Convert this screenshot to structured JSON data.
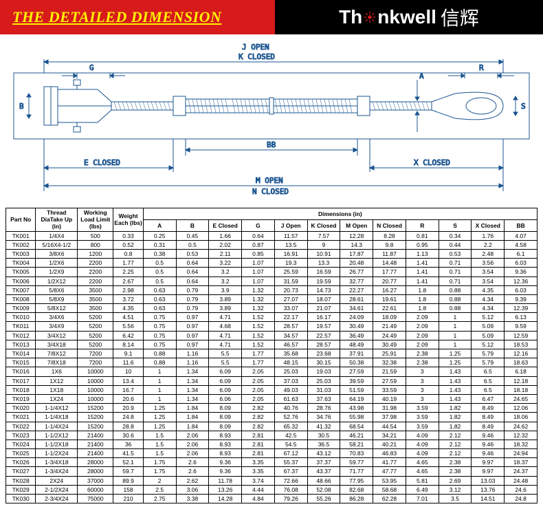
{
  "header": {
    "title": "THE DETAILED DIMENSION",
    "logo_prefix": "Th",
    "logo_mid": "nkwell",
    "logo_cn": "信辉"
  },
  "diagram": {
    "labels": {
      "j_open": "J OPEN",
      "k_closed": "K CLOSED",
      "g": "G",
      "b": "B",
      "e_closed": "E CLOSED",
      "bb": "BB",
      "m_open": "M OPEN",
      "n_closed": "N CLOSED",
      "a": "A",
      "s": "S",
      "r": "R",
      "x_closed": "X CLOSED"
    },
    "stroke": "#1a5490",
    "fill": "#ffffff"
  },
  "table": {
    "top_headers": {
      "part_no": "Part No",
      "thread": "Thread DiaTake Up (in)",
      "load": "Working Load Limit (lbs)",
      "weight": "Weight Each (lbs)",
      "dims": "Dimensions (in)"
    },
    "dim_cols": [
      "A",
      "B",
      "E Closed",
      "G",
      "J Open",
      "K Closed",
      "M Open",
      "N Closed",
      "R",
      "S",
      "X Closed",
      "BB"
    ],
    "rows": [
      [
        "TK001",
        "1/4X4",
        "500",
        "0.33",
        "0.25",
        "0.45",
        "1.66",
        "0.64",
        "11.57",
        "7.57",
        "12.28",
        "8.28",
        "0.81",
        "0.34",
        "1.76",
        "4.07"
      ],
      [
        "TK002",
        "5/16X4-1/2",
        "800",
        "0.52",
        "0.31",
        "0.5",
        "2.02",
        "0.87",
        "13.5",
        "9",
        "14.3",
        "9.8",
        "0.95",
        "0.44",
        "2.2",
        "4.58"
      ],
      [
        "TK003",
        "3/8X6",
        "1200",
        "0.8",
        "0.38",
        "0.53",
        "2.11",
        "0.85",
        "16.91",
        "10.91",
        "17.87",
        "11.87",
        "1.13",
        "0.53",
        "2.48",
        "6.1"
      ],
      [
        "TK004",
        "1/2X6",
        "2200",
        "1.77",
        "0.5",
        "0.64",
        "3.22",
        "1.07",
        "19.3",
        "13.3",
        "20.48",
        "14.48",
        "1.41",
        "0.71",
        "3.56",
        "6.03"
      ],
      [
        "TK005",
        "1/2X9",
        "2200",
        "2.25",
        "0.5",
        "0.64",
        "3.2",
        "1.07",
        "25.59",
        "16.59",
        "26.77",
        "17.77",
        "1.41",
        "0.71",
        "3.54",
        "9.36"
      ],
      [
        "TK006",
        "1/2X12",
        "2200",
        "2.67",
        "0.5",
        "0.64",
        "3.2",
        "1.07",
        "31.59",
        "19.59",
        "32.77",
        "20.77",
        "1.41",
        "0.71",
        "3.54",
        "12.36"
      ],
      [
        "TK007",
        "5/8X6",
        "3500",
        "2.98",
        "0.63",
        "0.79",
        "3.9",
        "1.32",
        "20.73",
        "14.73",
        "22.27",
        "16.27",
        "1.8",
        "0.88",
        "4.35",
        "6.03"
      ],
      [
        "TK008",
        "5/8X9",
        "3500",
        "3.72",
        "0.63",
        "0.79",
        "3.89",
        "1.32",
        "27.07",
        "18.07",
        "28.61",
        "19.61",
        "1.8",
        "0.88",
        "4.34",
        "9.39"
      ],
      [
        "TK009",
        "5/8X12",
        "3500",
        "4.35",
        "0.63",
        "0.79",
        "3.89",
        "1.32",
        "33.07",
        "21.07",
        "34.61",
        "22.61",
        "1.8",
        "0.88",
        "4.34",
        "12.39"
      ],
      [
        "TK010",
        "3/4X6",
        "5200",
        "4.51",
        "0.75",
        "0.97",
        "4.71",
        "1.52",
        "22.17",
        "16.17",
        "24.09",
        "18.09",
        "2.09",
        "1",
        "5.12",
        "6.13"
      ],
      [
        "TK011",
        "3/4X9",
        "5200",
        "5.56",
        "0.75",
        "0.97",
        "4.68",
        "1.52",
        "28.57",
        "19.57",
        "30.49",
        "21.49",
        "2.09",
        "1",
        "5.09",
        "9.59"
      ],
      [
        "TK012",
        "3/4X12",
        "5200",
        "6.42",
        "0.75",
        "0.97",
        "4.71",
        "1.52",
        "34.57",
        "22.57",
        "36.49",
        "24.49",
        "2.09",
        "1",
        "5.09",
        "12.59"
      ],
      [
        "TK013",
        "3/4X18",
        "5200",
        "8.14",
        "0.75",
        "0.97",
        "4.71",
        "1.52",
        "46.57",
        "28.57",
        "48.49",
        "30.49",
        "2.09",
        "1",
        "5.12",
        "18.53"
      ],
      [
        "TK014",
        "7/8X12",
        "7200",
        "9.1",
        "0.88",
        "1.16",
        "5.5",
        "1.77",
        "35.68",
        "23.68",
        "37.91",
        "25.91",
        "2.38",
        "1.25",
        "5.79",
        "12.16"
      ],
      [
        "TK015",
        "7/8X18",
        "7200",
        "11.6",
        "0.88",
        "1.16",
        "5.5",
        "1.77",
        "48.15",
        "30.15",
        "50.38",
        "32.38",
        "2.38",
        "1.25",
        "5.79",
        "18.63"
      ],
      [
        "TK016",
        "1X6",
        "10000",
        "10",
        "1",
        "1.34",
        "6.09",
        "2.05",
        "25.03",
        "19.03",
        "27.59",
        "21.59",
        "3",
        "1.43",
        "6.5",
        "6.18"
      ],
      [
        "TK017",
        "1X12",
        "10000",
        "13.4",
        "1",
        "1.34",
        "6.09",
        "2.05",
        "37.03",
        "25.03",
        "39.59",
        "27.59",
        "3",
        "1.43",
        "6.5",
        "12.18"
      ],
      [
        "TK018",
        "1X18",
        "10000",
        "16.7",
        "1",
        "1.34",
        "6.09",
        "2.05",
        "49.03",
        "31.03",
        "51.59",
        "33.59",
        "3",
        "1.43",
        "6.5",
        "18.18"
      ],
      [
        "TK019",
        "1X24",
        "10000",
        "20.6",
        "1",
        "1.34",
        "6.06",
        "2.05",
        "61.63",
        "37.63",
        "64.19",
        "40.19",
        "3",
        "1.43",
        "6.47",
        "24.65"
      ],
      [
        "TK020",
        "1-1/4X12",
        "15200",
        "20.9",
        "1.25",
        "1.84",
        "8.09",
        "2.82",
        "40.76",
        "28.76",
        "43.98",
        "31.98",
        "3.59",
        "1.82",
        "8.49",
        "12.06"
      ],
      [
        "TK021",
        "1-1/4X18",
        "15200",
        "24.8",
        "1.25",
        "1.84",
        "8.09",
        "2.82",
        "52.76",
        "34.76",
        "55.98",
        "37.98",
        "3.59",
        "1.82",
        "8.49",
        "18.06"
      ],
      [
        "TK022",
        "1-1/4X24",
        "15200",
        "28.8",
        "1.25",
        "1.84",
        "8.09",
        "2.82",
        "65.32",
        "41.32",
        "68.54",
        "44.54",
        "3.59",
        "1.82",
        "8.49",
        "24.62"
      ],
      [
        "TK023",
        "1-1/2X12",
        "21400",
        "30.6",
        "1.5",
        "2.06",
        "8.93",
        "2.81",
        "42.5",
        "30.5",
        "46.21",
        "34.21",
        "4.09",
        "2.12",
        "9.46",
        "12.32"
      ],
      [
        "TK024",
        "1-1/2X18",
        "21400",
        "36",
        "1.5",
        "2.06",
        "8.93",
        "2.81",
        "54.5",
        "36.5",
        "58.21",
        "40.21",
        "4.09",
        "2.12",
        "9.46",
        "18.32"
      ],
      [
        "TK025",
        "1-1/2X24",
        "21400",
        "41.5",
        "1.5",
        "2.06",
        "8.93",
        "2.81",
        "67.12",
        "43.12",
        "70.83",
        "46.83",
        "4.09",
        "2.12",
        "9.46",
        "24.94"
      ],
      [
        "TK026",
        "1-3/4X18",
        "28000",
        "52.1",
        "1.75",
        "2.6",
        "9.36",
        "3.35",
        "55.37",
        "37.37",
        "59.77",
        "41.77",
        "4.65",
        "2.38",
        "9.97",
        "18.37"
      ],
      [
        "TK027",
        "1-3/4X24",
        "28000",
        "59.7",
        "1.75",
        "2.6",
        "9.36",
        "3.35",
        "67.37",
        "43.37",
        "71.77",
        "47.77",
        "4.65",
        "2.38",
        "9.97",
        "24.37"
      ],
      [
        "TK028",
        "2X24",
        "37000",
        "89.9",
        "2",
        "2.62",
        "11.78",
        "3.74",
        "72.66",
        "48.66",
        "77.95",
        "53.95",
        "5.81",
        "2.69",
        "13.03",
        "24.48"
      ],
      [
        "TK029",
        "2-1/2X24",
        "60000",
        "158",
        "2.5",
        "3.06",
        "13.26",
        "4.44",
        "76.08",
        "52.08",
        "82.68",
        "58.68",
        "6.49",
        "3.12",
        "13.76",
        "24.6"
      ],
      [
        "TK030",
        "2-3/4X24",
        "75000",
        "210",
        "2.75",
        "3.38",
        "14.28",
        "4.84",
        "79.26",
        "55.26",
        "86.28",
        "62.28",
        "7.01",
        "3.5",
        "14.51",
        "24.8"
      ]
    ]
  }
}
